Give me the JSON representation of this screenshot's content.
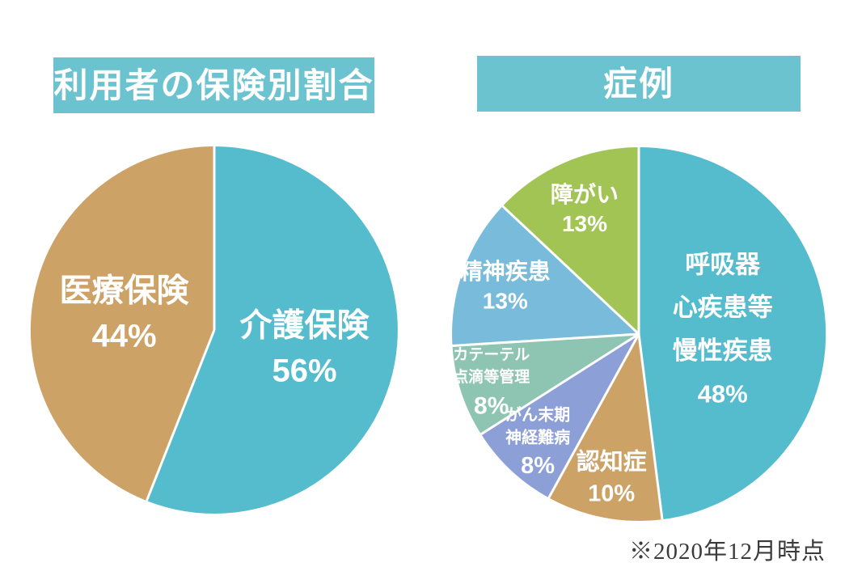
{
  "headers": {
    "left": "利用者の保険別割合",
    "right": "症例"
  },
  "footnote": {
    "text": "※2020年12月時点"
  },
  "colors": {
    "background": "#ffffff",
    "header_bg": "#6bc3d0",
    "header_text": "#ffffff",
    "slice_label_text": "#ffffff",
    "slice_divider": "#ffffff",
    "footnote_text": "#3b3b3b",
    "teal": "#54bccd",
    "tan": "#cda267",
    "periwinkle": "#8c9fd6",
    "seafoam": "#8ec4b2",
    "light_blue": "#79bbda",
    "green": "#a2c455"
  },
  "chart_data": [
    {
      "type": "pie",
      "title": "利用者の保険別割合",
      "start_angle_deg": 0,
      "direction": "clockwise",
      "legend_position": "none",
      "slices": [
        {
          "label": "介護保険",
          "value": 56,
          "pct_label": "56%",
          "color": "#54bccd",
          "label_lines": [
            "介護保険",
            "56%"
          ],
          "font_px": 40,
          "label_r": 0.5,
          "line_k": 1.4
        },
        {
          "label": "医療保険",
          "value": 44,
          "pct_label": "44%",
          "color": "#cda267",
          "label_lines": [
            "医療保険",
            "44%"
          ],
          "font_px": 40,
          "label_r": 0.5,
          "line_k": 1.4
        }
      ]
    },
    {
      "type": "pie",
      "title": "症例",
      "start_angle_deg": 0,
      "direction": "clockwise",
      "legend_position": "none",
      "slices": [
        {
          "label": "呼吸器 心疾患等 慢性疾患",
          "value": 48,
          "pct_label": "48%",
          "color": "#54bccd",
          "label_lines": [
            "呼吸器",
            "心疾患等",
            "慢性疾患",
            "48%"
          ],
          "font_px": 31,
          "label_r": 0.45,
          "line_k": 1.72
        },
        {
          "label": "認知症",
          "value": 10,
          "pct_label": "10%",
          "color": "#cda267",
          "label_lines": [
            "認知症",
            "10%"
          ],
          "font_px": 29,
          "label_r": 0.78,
          "line_k": 1.35
        },
        {
          "label": "がん末期 神経難病",
          "value": 8,
          "pct_label": "8%",
          "color": "#8c9fd6",
          "label_lines": [
            "がん末期",
            "神経難病",
            "8%"
          ],
          "font_px": 20,
          "pct_font_px": 29,
          "label_r": 0.79,
          "line_k": 1.4
        },
        {
          "label": "カテーテル 点滴等管理",
          "value": 8,
          "pct_label": "8%",
          "color": "#8ec4b2",
          "label_lines": [
            "カテーテル",
            "点滴等管理",
            "8%"
          ],
          "font_px": 19,
          "pct_font_px": 30,
          "label_r": 0.83,
          "line_k": 1.45
        },
        {
          "label": "精神疾患",
          "value": 13,
          "pct_label": "13%",
          "color": "#79bbda",
          "label_lines": [
            "精神疾患",
            "13%"
          ],
          "font_px": 28,
          "label_r": 0.76,
          "line_k": 1.3
        },
        {
          "label": "障がい",
          "value": 13,
          "pct_label": "13%",
          "color": "#a2c455",
          "label_lines": [
            "障がい",
            "13%"
          ],
          "font_px": 28,
          "label_r": 0.73,
          "line_k": 1.3
        }
      ]
    }
  ]
}
